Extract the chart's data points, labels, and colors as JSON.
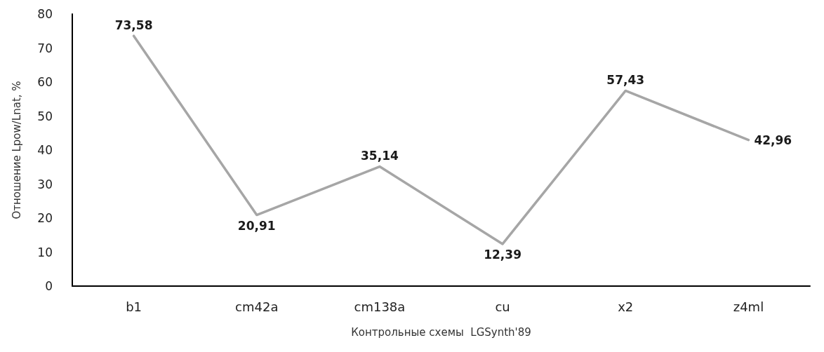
{
  "chart_data": {
    "type": "line",
    "xlabel": "Контрольные схемы  LGSynth'89",
    "ylabel": "Отношение Lpow/Lnat, %",
    "categories": [
      "b1",
      "cm42a",
      "cm138a",
      "cu",
      "x2",
      "z4ml"
    ],
    "series": [
      {
        "color": "#a6a6a6",
        "values": [
          73.58,
          20.91,
          35.14,
          12.39,
          57.43,
          42.96
        ],
        "value_labels": [
          "73,58",
          "20,91",
          "35,14",
          "12,39",
          "57,43",
          "42,96"
        ]
      }
    ],
    "ylim": [
      0,
      80
    ],
    "yticks": [
      0,
      10,
      20,
      30,
      40,
      50,
      60,
      70,
      80
    ],
    "grid": false,
    "marker": "none",
    "line_style": "solid"
  }
}
